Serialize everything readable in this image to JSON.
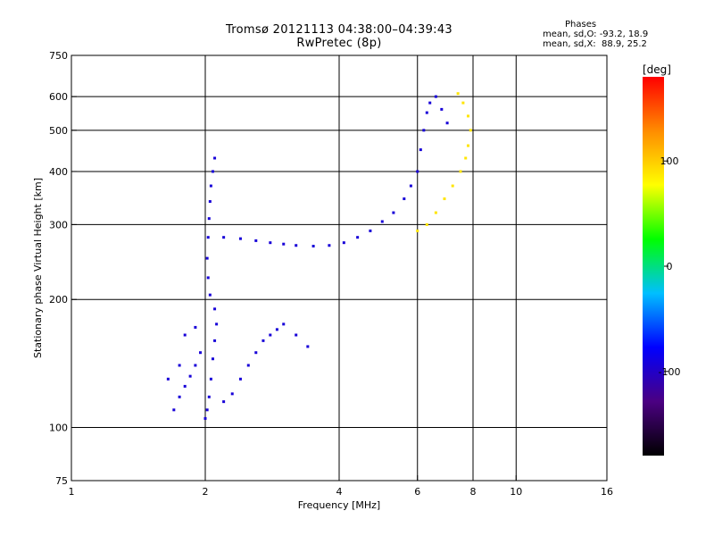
{
  "header": {
    "title": "Tromsø 20121113 04:38:00–04:39:43",
    "subtitle": "RwPretec (8p)",
    "stats_heading": "Phases",
    "stats_o": "mean, sd,O: -93.2, 18.9",
    "stats_x": "mean, sd,X:  88.9, 25.2"
  },
  "chart_data": {
    "type": "scatter",
    "title": "Tromsø 20121113 04:38:00–04:39:43",
    "subtitle": "RwPretec (8p)",
    "xlabel": "Frequency [MHz]",
    "ylabel": "Stationary phase Virtual Height [km]",
    "x_scale": "log",
    "y_scale": "log",
    "xlim": [
      1,
      16
    ],
    "ylim": [
      75,
      750
    ],
    "x_ticks": [
      1,
      2,
      4,
      6,
      8,
      10,
      16
    ],
    "x_tick_labels": [
      "1",
      "2",
      "4",
      "6",
      "8",
      "10",
      "16"
    ],
    "y_ticks": [
      75,
      100,
      200,
      300,
      400,
      500,
      600,
      750
    ],
    "y_tick_labels": [
      "75",
      "100",
      "200",
      "300",
      "400",
      "500",
      "600",
      "750"
    ],
    "x_gridlines": [
      2,
      4,
      6,
      8,
      10
    ],
    "y_gridlines": [
      100,
      200,
      300,
      400,
      500,
      600
    ],
    "grid": true,
    "colorbar": {
      "label": "[deg]",
      "range": [
        -180,
        180
      ],
      "ticks": [
        100,
        0,
        -100
      ],
      "tick_labels": [
        "100",
        "0",
        "-100"
      ],
      "colors": [
        "#000000",
        "#4b0082",
        "#0000ff",
        "#00bfff",
        "#00ff00",
        "#ffff00",
        "#ff8c00",
        "#ff0000"
      ]
    },
    "series": [
      {
        "mode": "O",
        "color_phase_deg": -93.2,
        "points": [
          [
            2.0,
            105
          ],
          [
            2.02,
            110
          ],
          [
            2.04,
            118
          ],
          [
            2.06,
            130
          ],
          [
            2.08,
            145
          ],
          [
            2.1,
            160
          ],
          [
            2.12,
            175
          ],
          [
            2.1,
            190
          ],
          [
            2.05,
            205
          ],
          [
            2.03,
            225
          ],
          [
            2.02,
            250
          ],
          [
            2.03,
            280
          ],
          [
            2.04,
            310
          ],
          [
            2.05,
            340
          ],
          [
            2.06,
            370
          ],
          [
            2.08,
            400
          ],
          [
            2.1,
            430
          ],
          [
            1.7,
            110
          ],
          [
            1.75,
            118
          ],
          [
            1.8,
            125
          ],
          [
            1.85,
            132
          ],
          [
            1.9,
            140
          ],
          [
            1.95,
            150
          ],
          [
            1.8,
            165
          ],
          [
            1.9,
            172
          ],
          [
            1.75,
            140
          ],
          [
            1.65,
            130
          ],
          [
            2.2,
            115
          ],
          [
            2.3,
            120
          ],
          [
            2.4,
            130
          ],
          [
            2.5,
            140
          ],
          [
            2.6,
            150
          ],
          [
            2.7,
            160
          ],
          [
            2.8,
            165
          ],
          [
            2.9,
            170
          ],
          [
            3.0,
            175
          ],
          [
            3.2,
            165
          ],
          [
            3.4,
            155
          ],
          [
            2.2,
            280
          ],
          [
            2.4,
            278
          ],
          [
            2.6,
            275
          ],
          [
            2.8,
            272
          ],
          [
            3.0,
            270
          ],
          [
            3.2,
            268
          ],
          [
            3.5,
            267
          ],
          [
            3.8,
            268
          ],
          [
            4.1,
            272
          ],
          [
            4.4,
            280
          ],
          [
            4.7,
            290
          ],
          [
            5.0,
            305
          ],
          [
            5.3,
            320
          ],
          [
            5.6,
            345
          ],
          [
            5.8,
            370
          ],
          [
            6.0,
            400
          ],
          [
            6.1,
            450
          ],
          [
            6.2,
            500
          ],
          [
            6.3,
            550
          ],
          [
            6.4,
            580
          ],
          [
            6.6,
            600
          ],
          [
            6.8,
            560
          ],
          [
            7.0,
            520
          ]
        ]
      },
      {
        "mode": "X",
        "color_phase_deg": 88.9,
        "points": [
          [
            6.0,
            290
          ],
          [
            6.3,
            300
          ],
          [
            6.6,
            320
          ],
          [
            6.9,
            345
          ],
          [
            7.2,
            370
          ],
          [
            7.5,
            400
          ],
          [
            7.7,
            430
          ],
          [
            7.8,
            460
          ],
          [
            7.9,
            500
          ],
          [
            7.8,
            540
          ],
          [
            7.6,
            580
          ],
          [
            7.4,
            610
          ]
        ]
      }
    ]
  }
}
